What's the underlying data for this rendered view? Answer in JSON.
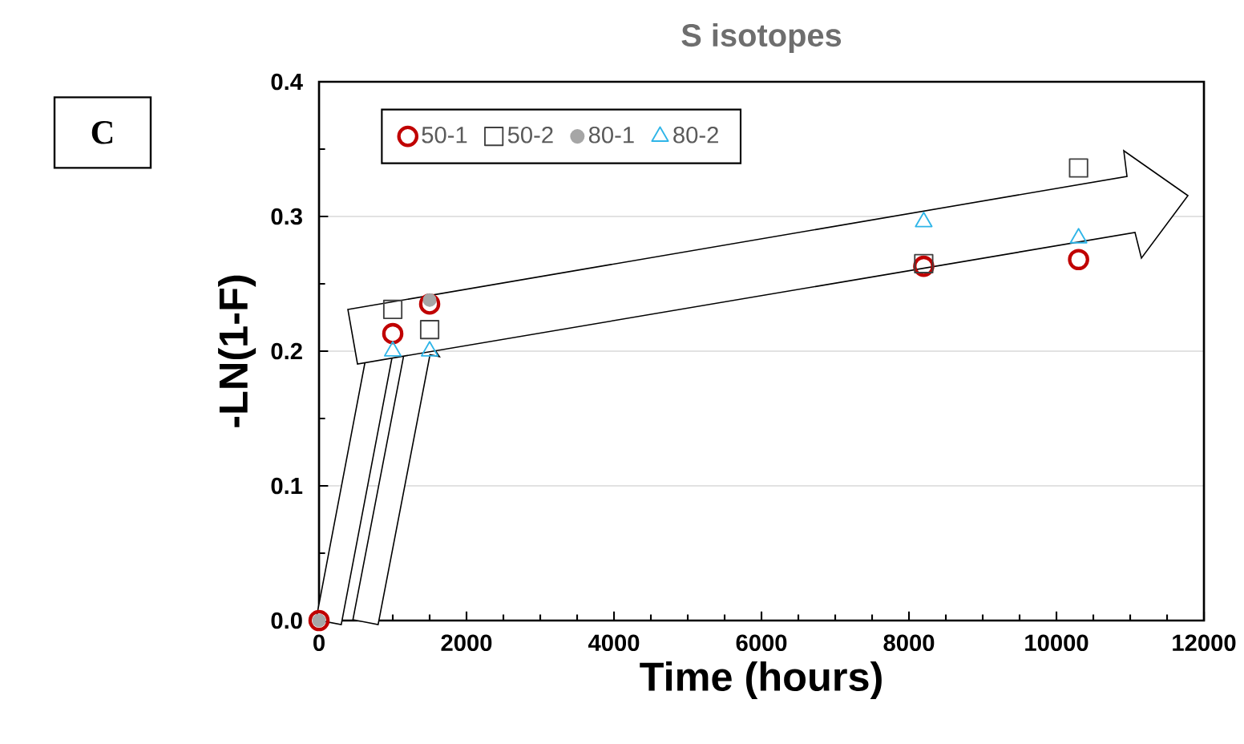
{
  "chart_data": {
    "type": "scatter",
    "title": "S isotopes",
    "xlabel": "Time (hours)",
    "ylabel": "-LN(1-F)",
    "annotations": [
      "C"
    ],
    "xlim": [
      0,
      12000
    ],
    "xticks": [
      0,
      2000,
      4000,
      6000,
      8000,
      10000,
      12000
    ],
    "ylim": [
      0,
      0.4
    ],
    "yticks": [
      {
        "value": 0,
        "label": "0.0"
      },
      {
        "value": 0.1,
        "label": "0.1"
      },
      {
        "value": 0.2,
        "label": "0.2"
      },
      {
        "value": 0.3,
        "label": "0.3"
      },
      {
        "value": 0.4,
        "label": "0.4"
      }
    ],
    "grid": "y",
    "legend": "top left",
    "series": [
      {
        "name": "50-1",
        "color": "#c00000",
        "marker": "circle",
        "x": [
          0,
          1000,
          1500,
          8200,
          10300
        ],
        "values": [
          0,
          0.213,
          0.235,
          0.263,
          0.268
        ]
      },
      {
        "name": "50-2",
        "color": "#404040",
        "marker": "square",
        "x": [
          1000,
          1500,
          8200,
          10300
        ],
        "values": [
          0.231,
          0.216,
          0.265,
          0.336
        ]
      },
      {
        "name": "80-1",
        "color": "#a6a6a6",
        "marker": "dot",
        "x": [
          0,
          1500
        ],
        "values": [
          0,
          0.238
        ]
      },
      {
        "name": "80-2",
        "color": "#2fb5e8",
        "marker": "triangle",
        "x": [
          1000,
          1500,
          8200,
          10300
        ],
        "values": [
          0.2,
          0.2,
          0.296,
          0.284
        ]
      }
    ]
  }
}
